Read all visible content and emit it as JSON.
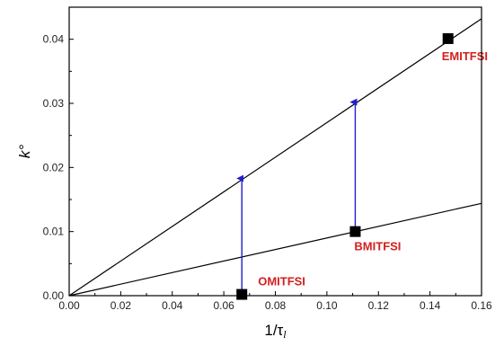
{
  "chart_data": {
    "type": "scatter",
    "title": "",
    "xlabel": "1/τl",
    "xlabel_main": "1/τ",
    "xlabel_sub": "l",
    "ylabel": "k°",
    "xlim": [
      0.0,
      0.16
    ],
    "ylim": [
      0.0,
      0.045
    ],
    "x_ticks": [
      "0.00",
      "0.02",
      "0.04",
      "0.06",
      "0.08",
      "0.10",
      "0.12",
      "0.14",
      "0.16"
    ],
    "y_ticks": [
      "0.00",
      "0.01",
      "0.02",
      "0.03",
      "0.04"
    ],
    "grid": false,
    "points": [
      {
        "label": "OMITFSI",
        "x": 0.067,
        "y": 0.0002
      },
      {
        "label": "BMITFSI",
        "x": 0.111,
        "y": 0.01
      },
      {
        "label": "EMITFSI",
        "x": 0.147,
        "y": 0.0401
      }
    ],
    "lines": [
      {
        "from": [
          0.0,
          0.0
        ],
        "to": [
          0.16,
          0.0432
        ]
      },
      {
        "from": [
          0.0,
          0.0
        ],
        "to": [
          0.16,
          0.0144
        ]
      }
    ],
    "arrows": [
      {
        "x": 0.067,
        "from_y": 0.0002,
        "to_y": 0.0183
      },
      {
        "x": 0.111,
        "from_y": 0.01,
        "to_y": 0.0302
      }
    ],
    "colors": {
      "points": "#000000",
      "lines": "#000000",
      "arrows": "#1f1fd0",
      "labels": "#d42020"
    }
  }
}
